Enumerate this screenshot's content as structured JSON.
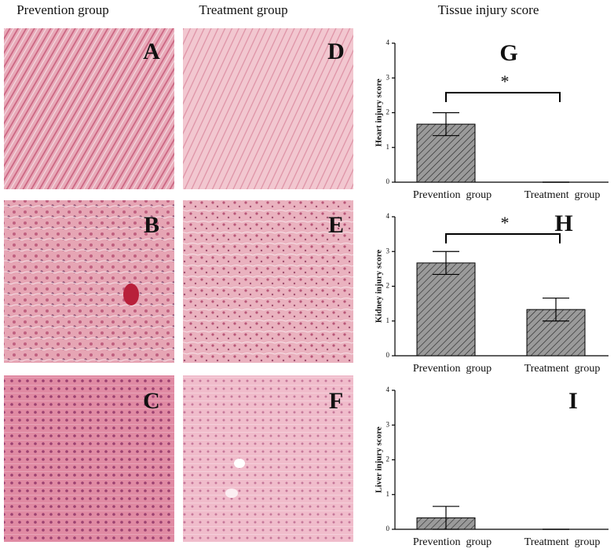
{
  "headers": [
    "Prevention group",
    "Treatment group",
    "Tissue injury score"
  ],
  "image_panels": [
    "A",
    "B",
    "C",
    "D",
    "E",
    "F"
  ],
  "chart_data": [
    {
      "type": "bar",
      "panel_label": "G",
      "ylabel": "Heart injury score",
      "annotation": "*",
      "categories": [
        "Prevention  group",
        "Treatment  group"
      ],
      "values": [
        1.67,
        0
      ],
      "errors": [
        0.33,
        0
      ],
      "color": "#9a9a9a",
      "ylim": [
        0,
        4
      ],
      "yticks": [
        0,
        1,
        2,
        3,
        4
      ]
    },
    {
      "type": "bar",
      "panel_label": "H",
      "ylabel": "Kidney injury score",
      "annotation": "*",
      "categories": [
        "Prevention  group",
        "Treatment  group"
      ],
      "values": [
        2.67,
        1.33
      ],
      "errors": [
        0.33,
        0.33
      ],
      "color": "#9a9a9a",
      "ylim": [
        0,
        4
      ],
      "yticks": [
        0,
        1,
        2,
        3,
        4
      ]
    },
    {
      "type": "bar",
      "panel_label": "I",
      "ylabel": "Liver injury score",
      "categories": [
        "Prevention  group",
        "Treatment  group"
      ],
      "values": [
        0.33,
        0
      ],
      "errors": [
        0.33,
        0
      ],
      "color": "#9a9a9a",
      "ylim": [
        0,
        4
      ],
      "yticks": [
        0,
        1,
        2,
        3,
        4
      ]
    }
  ]
}
